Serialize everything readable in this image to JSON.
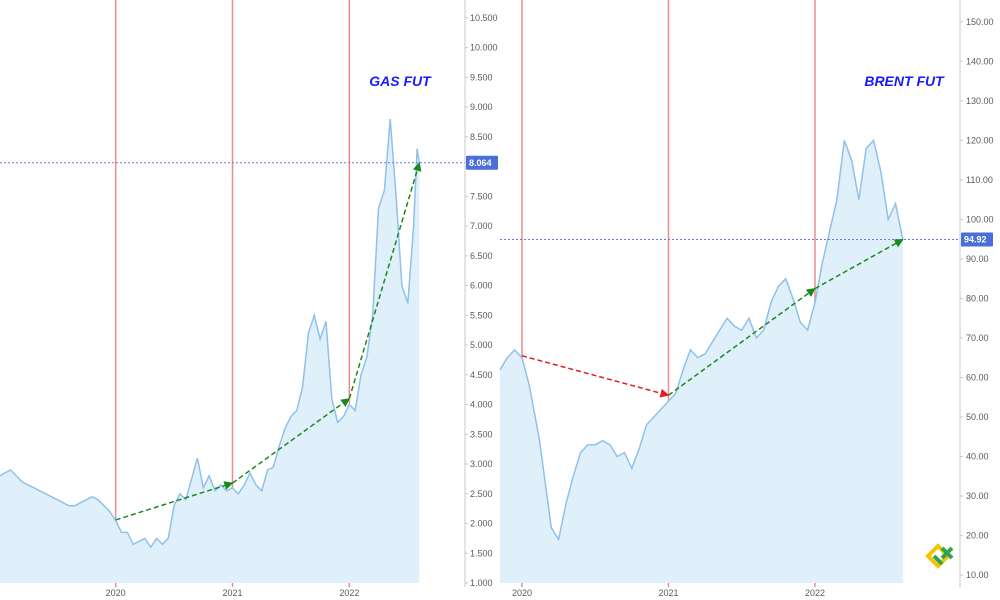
{
  "colors": {
    "area_fill": "#e0f0fa",
    "price_line": "#8fc1ea",
    "year_line": "#f08a8a",
    "trend_up": "#1a8a1a",
    "trend_down": "#e02020",
    "current_line": "#6a7ad8",
    "badge": "#4a6fd8",
    "axis_line": "#c8c8c8"
  },
  "chart_data": [
    {
      "type": "area",
      "title": "GAS FUT",
      "ylim": [
        1.0,
        10.7
      ],
      "xlim": [
        2019.01,
        2022.99
      ],
      "y_ticks": [
        "1.000",
        "1.500",
        "2.000",
        "2.500",
        "3.000",
        "3.500",
        "4.000",
        "4.500",
        "5.000",
        "5.500",
        "6.000",
        "6.500",
        "7.000",
        "7.500",
        "8.000",
        "8.500",
        "9.000",
        "9.500",
        "10.000",
        "10.500"
      ],
      "x_ticks": [
        {
          "label": "2020",
          "value": 2020.0
        },
        {
          "label": "2021",
          "value": 2021.0
        },
        {
          "label": "2022",
          "value": 2022.0
        }
      ],
      "current_value": "8.064",
      "series": [
        {
          "x": [
            2019.01,
            2019.05,
            2019.1,
            2019.15,
            2019.2,
            2019.25,
            2019.3,
            2019.35,
            2019.4,
            2019.45,
            2019.5,
            2019.55,
            2019.6,
            2019.65,
            2019.7,
            2019.75,
            2019.8,
            2019.85,
            2019.9,
            2019.95,
            2020.0,
            2020.05,
            2020.1,
            2020.15,
            2020.2,
            2020.25,
            2020.3,
            2020.35,
            2020.4,
            2020.45,
            2020.5,
            2020.55,
            2020.6,
            2020.65,
            2020.7,
            2020.75,
            2020.8,
            2020.85,
            2020.9,
            2020.95,
            2021.0,
            2021.05,
            2021.1,
            2021.15,
            2021.2,
            2021.25,
            2021.3,
            2021.35,
            2021.4,
            2021.45,
            2021.5,
            2021.55,
            2021.6,
            2021.65,
            2021.7,
            2021.75,
            2021.8,
            2021.85,
            2021.9,
            2021.95,
            2022.0,
            2022.05,
            2022.1,
            2022.15,
            2022.2,
            2022.25,
            2022.3,
            2022.35,
            2022.4,
            2022.45,
            2022.5,
            2022.55,
            2022.58,
            2022.6
          ],
          "y": [
            2.8,
            2.85,
            2.9,
            2.8,
            2.7,
            2.65,
            2.6,
            2.55,
            2.5,
            2.45,
            2.4,
            2.35,
            2.3,
            2.3,
            2.35,
            2.4,
            2.45,
            2.4,
            2.3,
            2.2,
            2.05,
            1.85,
            1.85,
            1.65,
            1.7,
            1.75,
            1.6,
            1.75,
            1.65,
            1.75,
            2.3,
            2.5,
            2.4,
            2.75,
            3.1,
            2.6,
            2.8,
            2.55,
            2.65,
            2.55,
            2.6,
            2.5,
            2.65,
            2.85,
            2.65,
            2.55,
            2.9,
            2.95,
            3.3,
            3.6,
            3.8,
            3.9,
            4.3,
            5.2,
            5.5,
            5.1,
            5.4,
            4.1,
            3.7,
            3.8,
            4.0,
            3.9,
            4.5,
            4.8,
            5.5,
            7.3,
            7.6,
            8.8,
            7.5,
            6.0,
            5.7,
            7.0,
            8.3,
            8.06
          ]
        }
      ],
      "trend_points": [
        {
          "x": 2020.0,
          "y": 2.06
        },
        {
          "x": 2021.0,
          "y": 2.68
        },
        {
          "x": 2022.0,
          "y": 4.1
        },
        {
          "x": 2022.6,
          "y": 8.064
        }
      ]
    },
    {
      "type": "area",
      "title": "BRENT FUT",
      "ylim": [
        8.0,
        154.0
      ],
      "xlim": [
        2019.85,
        2022.99
      ],
      "y_ticks": [
        "10.00",
        "20.00",
        "30.00",
        "40.00",
        "50.00",
        "60.00",
        "70.00",
        "80.00",
        "90.00",
        "100.00",
        "110.00",
        "120.00",
        "130.00",
        "140.00",
        "150.00"
      ],
      "x_ticks": [
        {
          "label": "2020",
          "value": 2020.0
        },
        {
          "label": "2021",
          "value": 2021.0
        },
        {
          "label": "2022",
          "value": 2022.0
        }
      ],
      "current_value": "94.92",
      "series": [
        {
          "x": [
            2019.85,
            2019.9,
            2019.95,
            2020.0,
            2020.05,
            2020.08,
            2020.12,
            2020.16,
            2020.2,
            2020.25,
            2020.3,
            2020.35,
            2020.4,
            2020.45,
            2020.5,
            2020.55,
            2020.6,
            2020.65,
            2020.7,
            2020.75,
            2020.8,
            2020.85,
            2020.9,
            2020.95,
            2021.0,
            2021.05,
            2021.1,
            2021.15,
            2021.2,
            2021.25,
            2021.3,
            2021.35,
            2021.4,
            2021.45,
            2021.5,
            2021.55,
            2021.6,
            2021.65,
            2021.7,
            2021.75,
            2021.8,
            2021.85,
            2021.9,
            2021.95,
            2022.0,
            2022.05,
            2022.1,
            2022.15,
            2022.2,
            2022.25,
            2022.3,
            2022.35,
            2022.4,
            2022.45,
            2022.5,
            2022.55,
            2022.6
          ],
          "y": [
            62,
            65,
            67,
            65,
            58,
            52,
            44,
            33,
            22,
            19,
            28,
            35,
            41,
            43,
            43,
            44,
            43,
            40,
            41,
            37,
            42,
            48,
            50,
            52,
            54,
            56,
            62,
            67,
            65,
            66,
            69,
            72,
            75,
            73,
            72,
            75,
            70,
            72,
            79,
            83,
            85,
            80,
            74,
            72,
            79,
            89,
            97,
            105,
            120,
            115,
            105,
            118,
            120,
            112,
            100,
            104,
            94.92
          ]
        }
      ],
      "trend_points": [
        {
          "x": 2020.0,
          "y": 65.5
        },
        {
          "x": 2021.0,
          "y": 55.5
        },
        {
          "x": 2022.0,
          "y": 82.5
        },
        {
          "x": 2022.6,
          "y": 94.92
        }
      ]
    }
  ]
}
